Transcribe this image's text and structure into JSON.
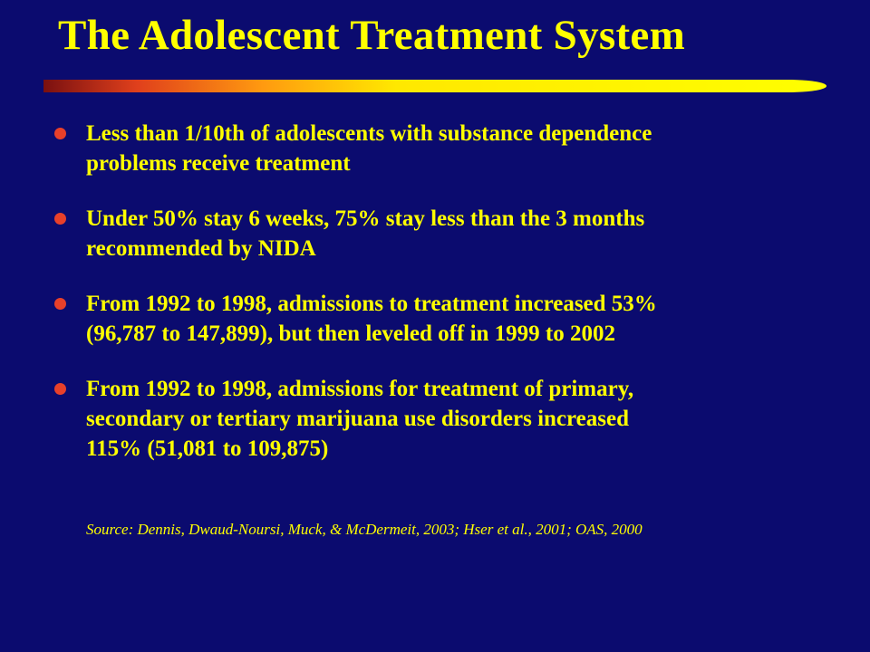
{
  "slide": {
    "title": "The Adolescent Treatment System",
    "bullets": [
      {
        "line1": "Less than 1/10th of adolescents with substance dependence",
        "line2": "problems receive treatment"
      },
      {
        "line1": "Under 50% stay 6 weeks, 75% stay less than the 3 months",
        "line2": "recommended by NIDA"
      },
      {
        "line1": "From 1992 to 1998, admissions to treatment increased 53%",
        "line2": "(96,787 to 147,899), but then leveled off in 1999 to 2002"
      },
      {
        "line1": "From 1992 to 1998, admissions for treatment of primary,",
        "line2": "secondary or tertiary marijuana use disorders increased",
        "line3": "115% (51,081 to 109,875)"
      }
    ],
    "source": "Source:  Dennis, Dwaud-Noursi, Muck, & McDermeit, 2003; Hser et al., 2001; OAS, 2000"
  },
  "colors": {
    "background": "#0b0b6f",
    "text": "#ffff00",
    "bullet": "#e8402a",
    "bar_start": "#8b1a1a",
    "bar_end": "#ffff00"
  }
}
